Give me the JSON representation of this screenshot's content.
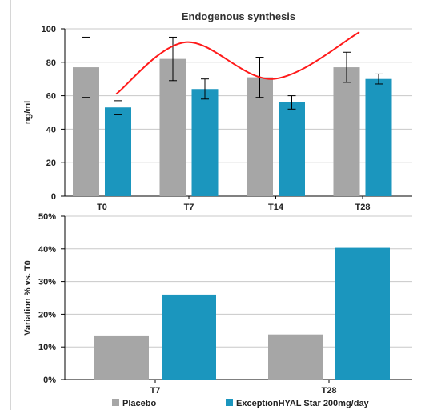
{
  "colors": {
    "placebo": "#a6a6a6",
    "treatment": "#1b96be",
    "trend_line": "#ff1a1a",
    "axis": "#000000",
    "gridline": "#c8c8c8",
    "error_bar": "#000000"
  },
  "legend": {
    "placebo_label": "Placebo",
    "treatment_label": "ExceptionHYAL Star 200mg/day",
    "placement": "bottom"
  },
  "chart_data": [
    {
      "type": "bar",
      "title": "Endogenous synthesis",
      "xlabel": "",
      "ylabel": "ng/ml",
      "categories": [
        "T0",
        "T7",
        "T14",
        "T28"
      ],
      "ylim": [
        0,
        100
      ],
      "yticks": [
        "0",
        "20",
        "40",
        "60",
        "80",
        "100"
      ],
      "grid": true,
      "series": [
        {
          "name": "Placebo",
          "values": [
            77,
            82,
            71,
            77
          ],
          "error": [
            18,
            13,
            12,
            9
          ]
        },
        {
          "name": "ExceptionHYAL Star 200mg/day",
          "values": [
            53,
            64,
            56,
            70
          ],
          "error": [
            4,
            6,
            4,
            3
          ]
        }
      ],
      "trend_line": {
        "type": "line",
        "description_series": "treatment-trend",
        "points": [
          [
            0.5,
            61
          ],
          [
            1.3,
            92
          ],
          [
            2.3,
            70
          ],
          [
            3.3,
            98
          ]
        ]
      }
    },
    {
      "type": "bar",
      "title": "",
      "xlabel": "",
      "ylabel": "Variation % vs. T0",
      "categories": [
        "T7",
        "T28"
      ],
      "ylim": [
        0,
        50
      ],
      "yticks": [
        "0%",
        "10%",
        "20%",
        "30%",
        "40%",
        "50%"
      ],
      "grid": true,
      "series": [
        {
          "name": "Placebo",
          "values": [
            13.5,
            13.8
          ]
        },
        {
          "name": "ExceptionHYAL Star 200mg/day",
          "values": [
            26,
            40.3
          ]
        }
      ]
    }
  ]
}
